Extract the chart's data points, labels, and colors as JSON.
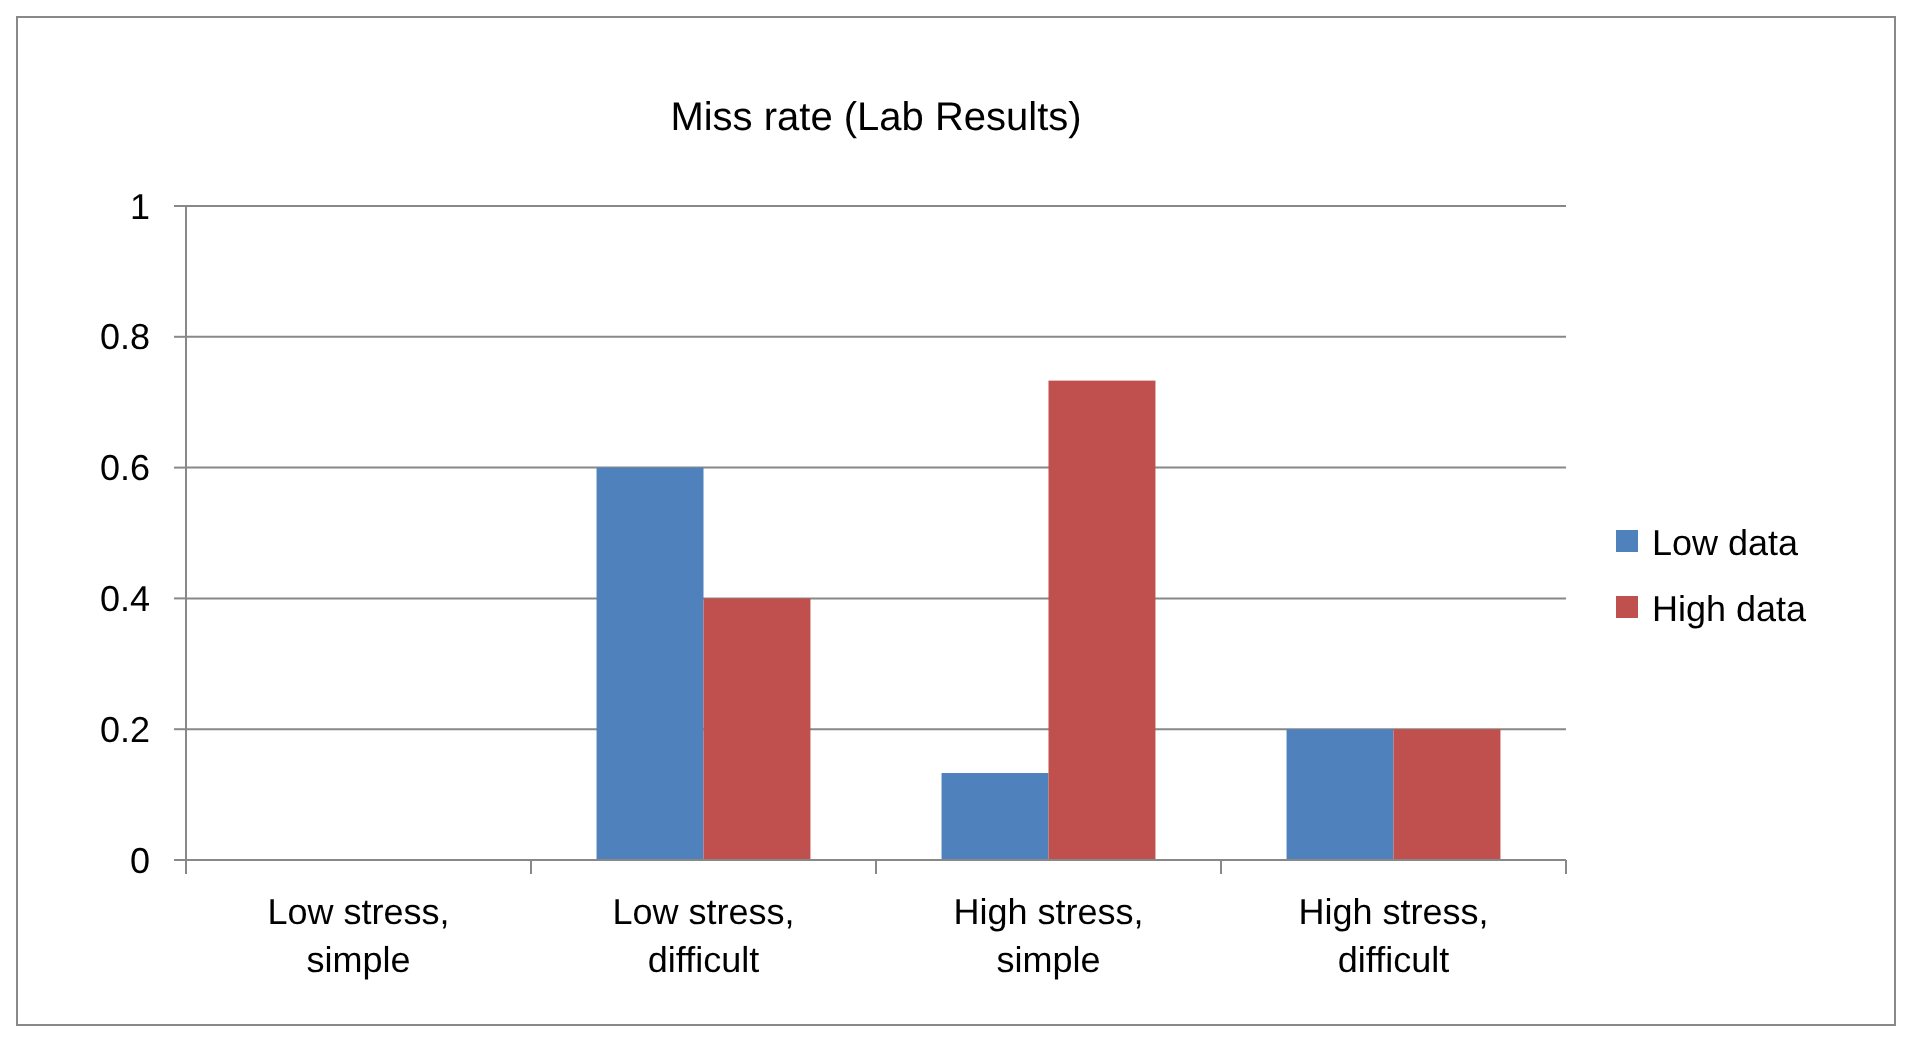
{
  "chart_data": {
    "type": "bar",
    "title": "Miss rate (Lab Results)",
    "categories": [
      "Low stress, simple",
      "Low stress, difficult",
      "High stress, simple",
      "High stress, difficult"
    ],
    "series": [
      {
        "name": "Low data",
        "color": "#4f81bd",
        "values": [
          0,
          0.6,
          0.133,
          0.2
        ]
      },
      {
        "name": "High data",
        "color": "#c0504d",
        "values": [
          0,
          0.4,
          0.733,
          0.2
        ]
      }
    ],
    "ylim": [
      0,
      1
    ],
    "yticks": [
      0,
      0.2,
      0.4,
      0.6,
      0.8,
      1
    ],
    "grid": "y",
    "legend": "right"
  }
}
